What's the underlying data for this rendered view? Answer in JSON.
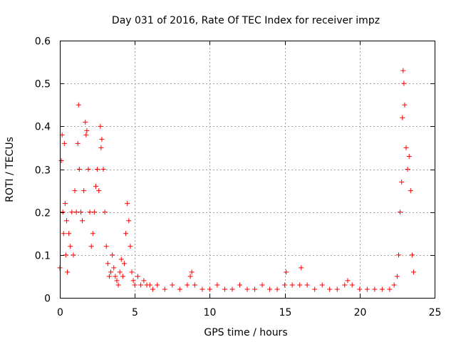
{
  "chart_data": {
    "type": "scatter",
    "title": "Day 031 of 2016, Rate Of TEC Index for receiver impz",
    "xlabel": "GPS time / hours",
    "ylabel": "ROTI / TECUs",
    "xlim": [
      0,
      25
    ],
    "ylim": [
      0,
      0.6
    ],
    "xticks": [
      0,
      5,
      10,
      15,
      20,
      25
    ],
    "xtick_labels": [
      "0",
      "5",
      "10",
      "15",
      "20",
      "25"
    ],
    "yticks": [
      0,
      0.1,
      0.2,
      0.3,
      0.4,
      0.5,
      0.6
    ],
    "ytick_labels": [
      "0",
      "0.1",
      "0.2",
      "0.3",
      "0.4",
      "0.5",
      "0.6"
    ],
    "grid": true,
    "marker": "+",
    "series": [
      {
        "name": "ROTI",
        "color": "#ff0000",
        "x": [
          0.0,
          0.1,
          0.15,
          0.2,
          0.25,
          0.3,
          0.35,
          0.4,
          0.45,
          0.5,
          0.6,
          0.7,
          0.8,
          0.9,
          1.0,
          1.1,
          1.2,
          1.25,
          1.3,
          1.4,
          1.5,
          1.6,
          1.7,
          1.75,
          1.8,
          1.9,
          2.0,
          2.1,
          2.2,
          2.3,
          2.4,
          2.5,
          2.6,
          2.7,
          2.75,
          2.8,
          2.9,
          3.0,
          3.1,
          3.2,
          3.3,
          3.4,
          3.5,
          3.6,
          3.7,
          3.8,
          3.9,
          4.0,
          4.1,
          4.2,
          4.3,
          4.4,
          4.5,
          4.6,
          4.7,
          4.8,
          4.9,
          5.0,
          5.2,
          5.4,
          5.6,
          5.8,
          6.0,
          6.2,
          6.5,
          7.0,
          7.5,
          8.0,
          8.5,
          8.7,
          8.8,
          9.0,
          9.5,
          10.0,
          10.5,
          11.0,
          11.5,
          12.0,
          12.5,
          13.0,
          13.5,
          14.0,
          14.5,
          15.0,
          15.1,
          15.5,
          16.0,
          16.1,
          16.5,
          17.0,
          17.5,
          18.0,
          18.5,
          19.0,
          19.2,
          19.5,
          20.0,
          20.5,
          21.0,
          21.5,
          22.0,
          22.3,
          22.5,
          22.6,
          22.7,
          22.8,
          22.85,
          22.9,
          22.95,
          23.0,
          23.1,
          23.2,
          23.3,
          23.4,
          23.5,
          23.6
        ],
        "y": [
          0.07,
          0.32,
          0.38,
          0.2,
          0.15,
          0.36,
          0.22,
          0.1,
          0.18,
          0.06,
          0.15,
          0.12,
          0.2,
          0.1,
          0.25,
          0.2,
          0.36,
          0.45,
          0.3,
          0.2,
          0.18,
          0.25,
          0.41,
          0.38,
          0.39,
          0.3,
          0.2,
          0.12,
          0.15,
          0.2,
          0.26,
          0.3,
          0.25,
          0.4,
          0.35,
          0.37,
          0.3,
          0.2,
          0.12,
          0.08,
          0.05,
          0.06,
          0.1,
          0.07,
          0.05,
          0.04,
          0.03,
          0.06,
          0.09,
          0.05,
          0.08,
          0.15,
          0.22,
          0.18,
          0.12,
          0.06,
          0.04,
          0.03,
          0.05,
          0.03,
          0.04,
          0.03,
          0.03,
          0.02,
          0.03,
          0.02,
          0.03,
          0.02,
          0.03,
          0.05,
          0.06,
          0.03,
          0.02,
          0.02,
          0.03,
          0.02,
          0.02,
          0.03,
          0.02,
          0.02,
          0.03,
          0.02,
          0.02,
          0.03,
          0.06,
          0.03,
          0.03,
          0.07,
          0.03,
          0.02,
          0.03,
          0.02,
          0.02,
          0.03,
          0.04,
          0.03,
          0.02,
          0.02,
          0.02,
          0.02,
          0.02,
          0.03,
          0.05,
          0.1,
          0.2,
          0.27,
          0.42,
          0.53,
          0.5,
          0.45,
          0.35,
          0.3,
          0.33,
          0.25,
          0.1,
          0.06
        ]
      }
    ]
  }
}
